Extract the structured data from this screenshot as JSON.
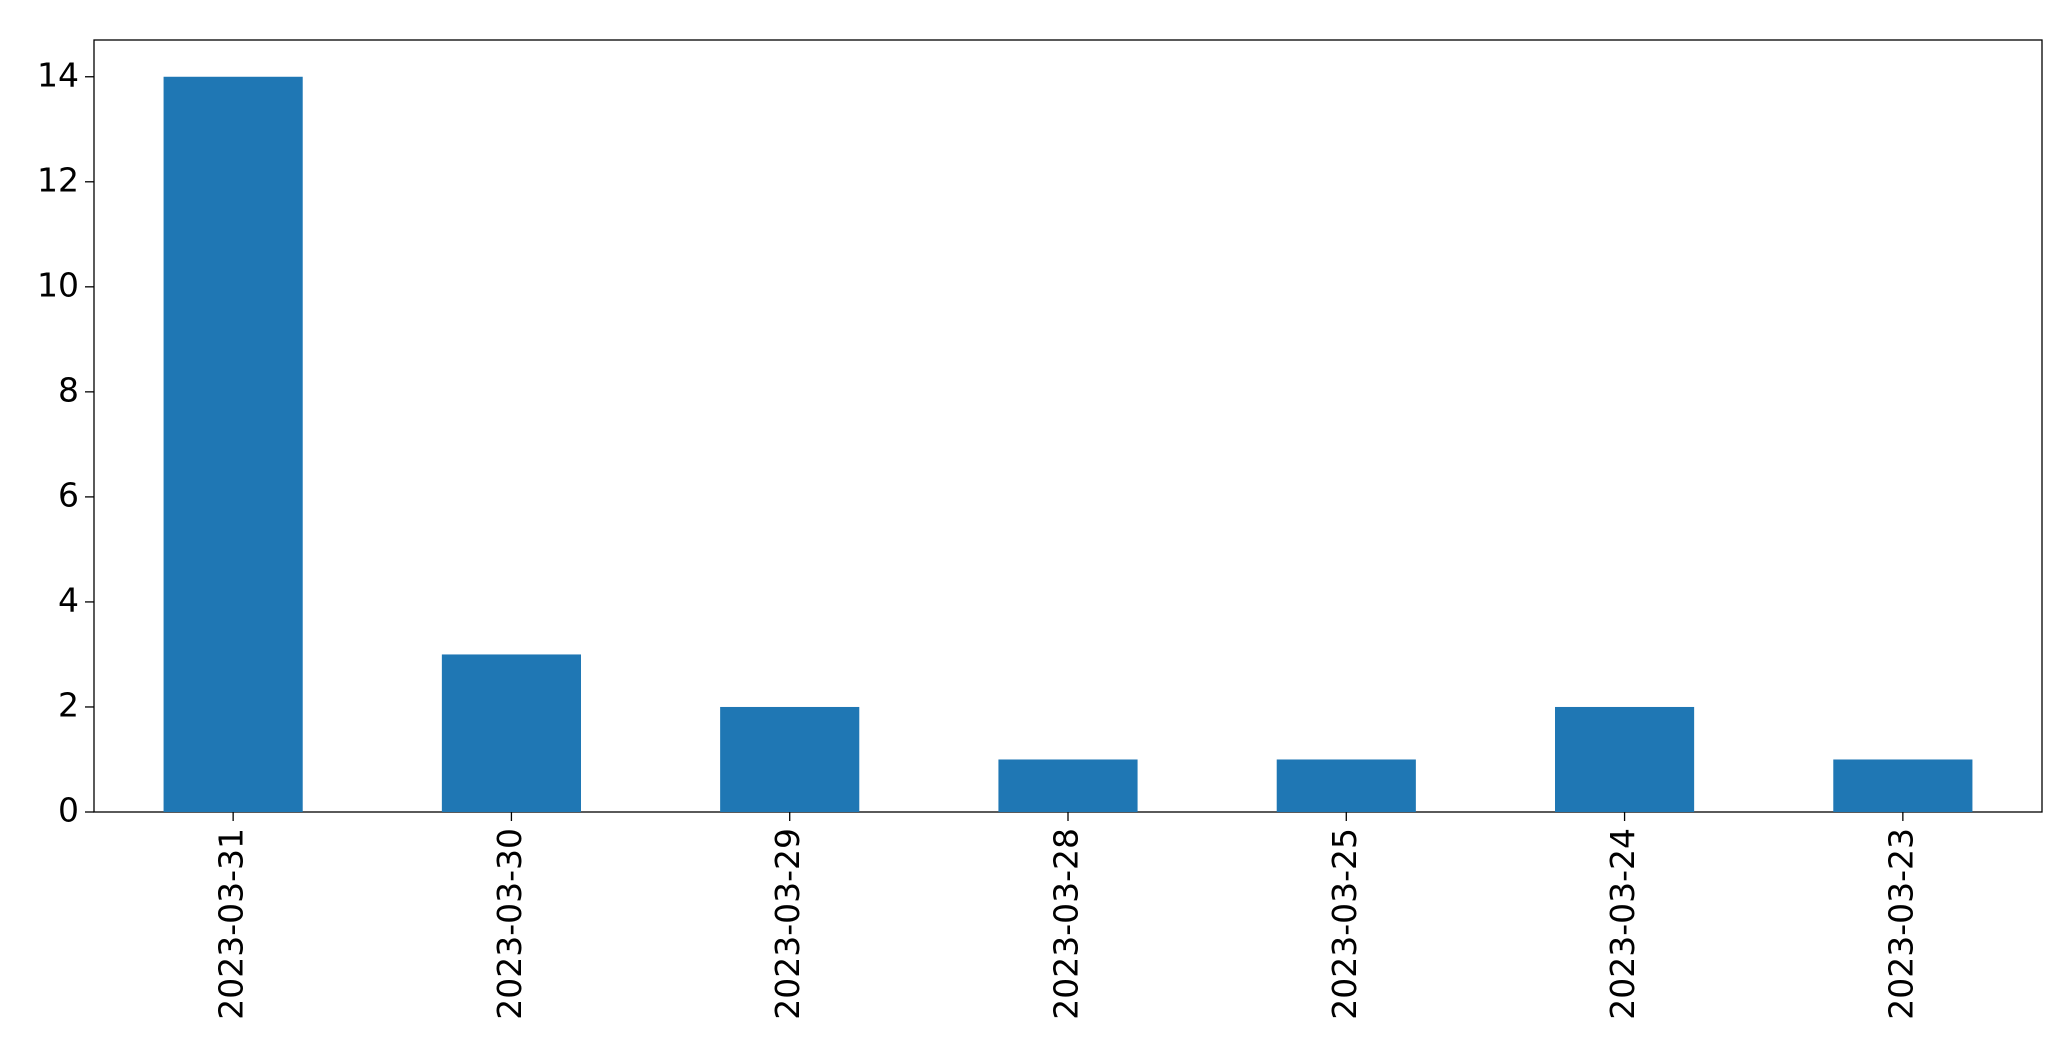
{
  "chart_data": {
    "type": "bar",
    "categories": [
      "2023-03-31",
      "2023-03-30",
      "2023-03-29",
      "2023-03-28",
      "2023-03-25",
      "2023-03-24",
      "2023-03-23"
    ],
    "values": [
      14,
      3,
      2,
      1,
      1,
      2,
      1
    ],
    "color": "#1f77b4",
    "ylim": [
      0,
      14.7
    ],
    "yticks": [
      0,
      2,
      4,
      6,
      8,
      10,
      12,
      14
    ],
    "grid": false
  }
}
